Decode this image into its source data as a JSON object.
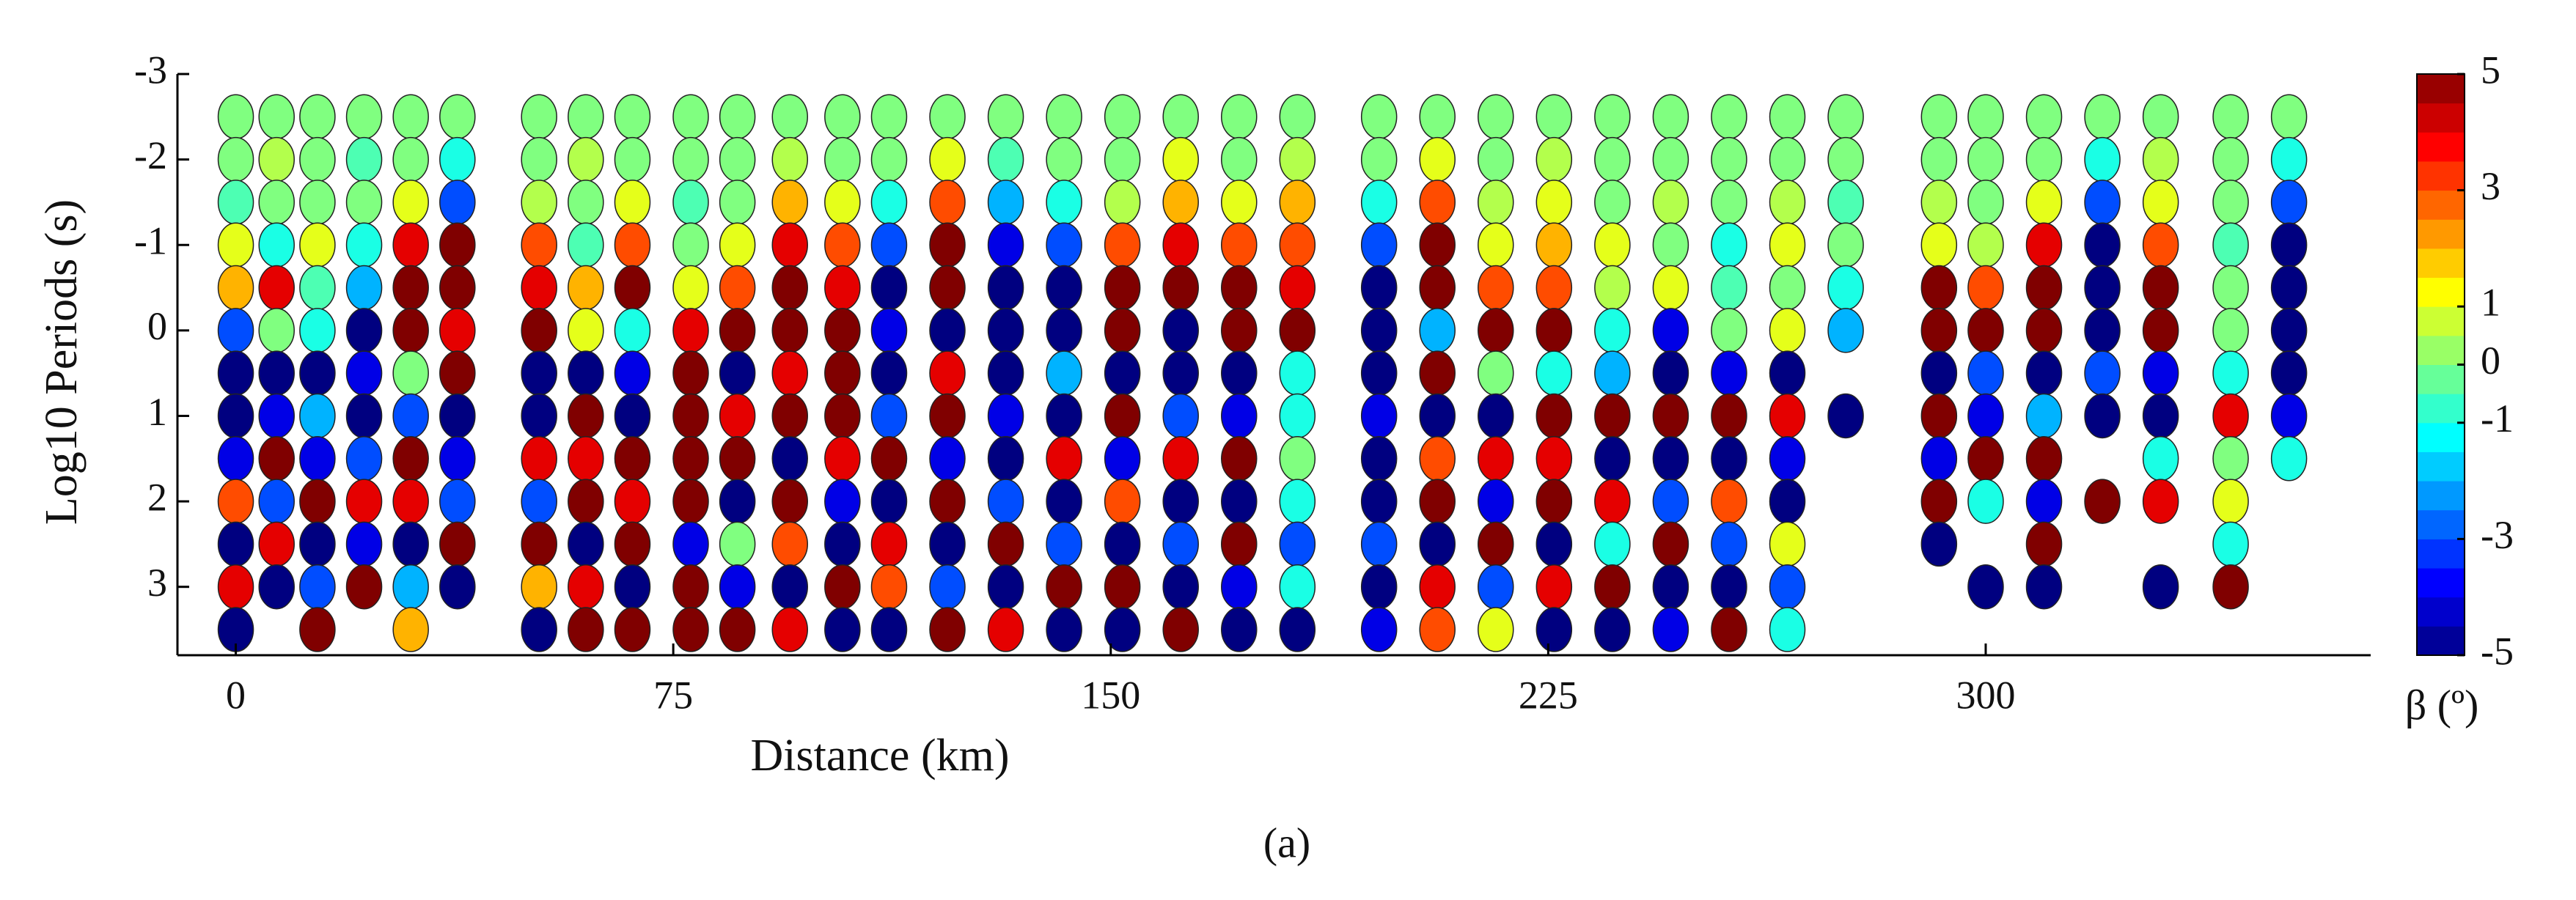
{
  "chart_data": {
    "type": "phase-tensor",
    "xlabel": "Distance (km)",
    "ylabel": "Log10 Periods (s)",
    "caption": "(a)",
    "colorbar_label": "β (º)",
    "colormap": "jet",
    "clim": [
      -5,
      5
    ],
    "cticks": [
      -5,
      -3,
      -1,
      0,
      1,
      3,
      5
    ],
    "xlim": [
      -10,
      366
    ],
    "xticks": [
      0,
      75,
      150,
      225,
      300
    ],
    "ylim": [
      -3,
      3.8
    ],
    "yticks": [
      -3,
      -2,
      -1,
      0,
      1,
      2,
      3
    ],
    "y_inverted": true,
    "x": [
      0,
      7,
      14,
      22,
      30,
      38,
      52,
      60,
      68,
      78,
      86,
      95,
      104,
      112,
      122,
      132,
      142,
      152,
      162,
      172,
      182,
      196,
      206,
      216,
      226,
      236,
      246,
      256,
      266,
      276,
      292,
      300,
      310,
      320,
      330,
      342,
      352
    ],
    "y": [
      -2.5,
      -2,
      -1.5,
      -1,
      -0.5,
      0,
      0.5,
      1,
      1.5,
      2,
      2.5,
      3,
      3.5
    ],
    "values": [
      [
        0,
        0,
        -0.5,
        1,
        2,
        -3,
        -5,
        -5,
        -4,
        3,
        -5,
        4,
        -5
      ],
      [
        0,
        0.5,
        0,
        -1,
        4,
        0,
        -5,
        -4,
        5,
        -3,
        4,
        -5,
        null
      ],
      [
        0,
        0,
        0,
        1,
        -0.5,
        -1,
        -5,
        -2,
        -4,
        5,
        -5,
        -3,
        5
      ],
      [
        0,
        -0.5,
        0,
        -1,
        -2,
        -5,
        -4,
        -5,
        -3,
        4,
        -4,
        5,
        null
      ],
      [
        0,
        0,
        1,
        4,
        5,
        5,
        0,
        -3,
        5,
        4,
        -5,
        -2,
        2
      ],
      [
        0,
        -1,
        -3,
        5,
        5,
        4,
        5,
        -5,
        -4,
        -3,
        5,
        -5,
        null
      ],
      [
        0,
        0,
        0.5,
        3,
        4,
        5,
        -5,
        -5,
        4,
        -3,
        5,
        2,
        -5
      ],
      [
        0,
        0.5,
        0,
        -0.5,
        2,
        1,
        -5,
        5,
        4,
        5,
        -5,
        4,
        5
      ],
      [
        0,
        0,
        1,
        3,
        5,
        -1,
        -4,
        -5,
        5,
        4,
        5,
        -5,
        5
      ],
      [
        0,
        0,
        -0.5,
        0,
        1,
        4,
        5,
        5,
        5,
        5,
        -4,
        5,
        5
      ],
      [
        0,
        0,
        0,
        1,
        3,
        5,
        -5,
        4,
        5,
        -5,
        0,
        -4,
        5
      ],
      [
        0,
        0.5,
        2,
        4,
        5,
        5,
        4,
        5,
        -5,
        5,
        3,
        -5,
        4
      ],
      [
        0,
        0,
        1,
        3,
        4,
        5,
        5,
        5,
        4,
        -4,
        -5,
        5,
        -5
      ],
      [
        0,
        0,
        -1,
        -3,
        -5,
        -4,
        -5,
        -3,
        5,
        -5,
        4,
        3,
        -5
      ],
      [
        0,
        1,
        3,
        5,
        5,
        -5,
        4,
        5,
        -4,
        5,
        -5,
        -3,
        5
      ],
      [
        0,
        -0.5,
        -2,
        -4,
        -5,
        -5,
        -5,
        -4,
        -5,
        -3,
        5,
        -5,
        4
      ],
      [
        0,
        0,
        -1,
        -3,
        -5,
        -5,
        -2,
        -5,
        4,
        -5,
        -3,
        5,
        -5
      ],
      [
        0,
        0,
        0.5,
        3,
        5,
        5,
        -5,
        5,
        -4,
        3,
        -5,
        5,
        -5
      ],
      [
        0,
        1,
        2,
        4,
        5,
        -5,
        -5,
        -3,
        4,
        -5,
        -3,
        -5,
        5
      ],
      [
        0,
        0,
        1,
        3,
        5,
        5,
        -5,
        -4,
        5,
        -5,
        5,
        -4,
        -5
      ],
      [
        0,
        0.5,
        2,
        3,
        4,
        5,
        -1,
        -1,
        0,
        -1,
        -3,
        -1,
        -5
      ],
      [
        0,
        0,
        -1,
        -3,
        -5,
        -5,
        -5,
        -4,
        -5,
        -5,
        -3,
        -5,
        -4
      ],
      [
        0,
        1,
        3,
        5,
        5,
        -2,
        5,
        -5,
        3,
        5,
        -5,
        4,
        3
      ],
      [
        0,
        0,
        0.5,
        1,
        3,
        5,
        0,
        -5,
        4,
        -4,
        5,
        -3,
        1
      ],
      [
        0,
        0.5,
        1,
        2,
        3,
        5,
        -1,
        5,
        4,
        5,
        -5,
        4,
        -5
      ],
      [
        0,
        0,
        0,
        1,
        0.5,
        -1,
        -2,
        5,
        -5,
        4,
        -1,
        5,
        -5
      ],
      [
        0,
        0,
        0.5,
        0,
        1,
        -4,
        -5,
        5,
        -5,
        -3,
        5,
        -5,
        -4
      ],
      [
        0,
        0,
        0,
        -1,
        -0.5,
        0,
        -4,
        5,
        -5,
        3,
        -3,
        -5,
        5
      ],
      [
        0,
        0,
        0.5,
        1,
        0,
        1,
        -5,
        4,
        -4,
        -5,
        1,
        -3,
        -1
      ],
      [
        0,
        0,
        -0.5,
        0,
        -1,
        -2,
        null,
        -5,
        null,
        null,
        null,
        null,
        null
      ],
      [
        0,
        0,
        0.5,
        1,
        5,
        5,
        -5,
        5,
        -4,
        5,
        -5,
        null,
        null
      ],
      [
        0,
        0,
        0,
        0.5,
        3,
        5,
        -3,
        -4,
        5,
        -1,
        null,
        -5,
        null
      ],
      [
        0,
        0,
        1,
        4,
        5,
        5,
        -5,
        -2,
        5,
        -4,
        5,
        -5,
        null
      ],
      [
        0,
        -1,
        -3,
        -5,
        -5,
        -5,
        -3,
        -5,
        null,
        5,
        null,
        null,
        null
      ],
      [
        0,
        0.5,
        1,
        3,
        5,
        5,
        -4,
        -5,
        -1,
        4,
        null,
        -5,
        null
      ],
      [
        0,
        0,
        0,
        -0.5,
        0,
        0,
        -1,
        4,
        0,
        1,
        -1,
        5,
        null
      ],
      [
        0,
        -1,
        -3,
        -5,
        -5,
        -5,
        -5,
        -4,
        -1,
        null,
        null,
        null,
        null
      ]
    ]
  }
}
